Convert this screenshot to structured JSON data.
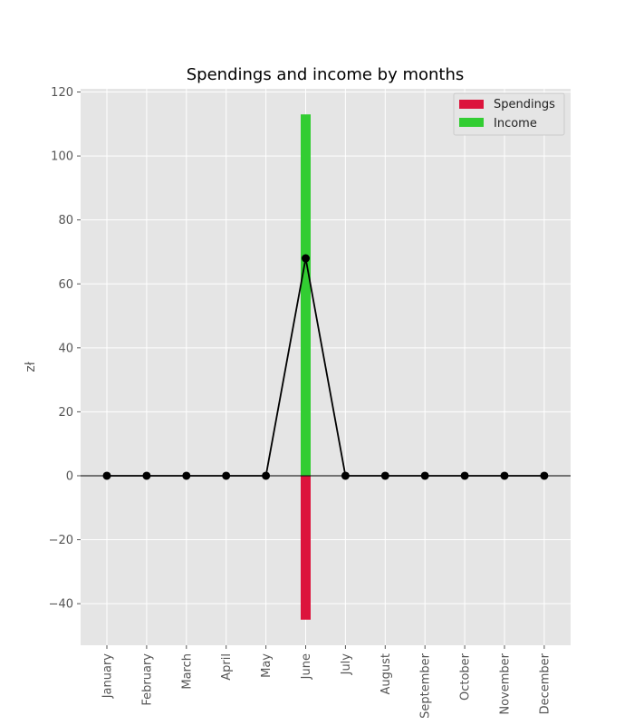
{
  "chart_data": {
    "type": "bar",
    "title": "Spendings and income by months",
    "xlabel": "",
    "ylabel": "zł",
    "categories": [
      "January",
      "February",
      "March",
      "April",
      "May",
      "June",
      "July",
      "August",
      "September",
      "October",
      "November",
      "December"
    ],
    "series": [
      {
        "name": "Spendings",
        "type": "bar",
        "color": "#dc143c",
        "values": [
          0,
          0,
          0,
          0,
          0,
          -45,
          0,
          0,
          0,
          0,
          0,
          0
        ]
      },
      {
        "name": "Income",
        "type": "bar",
        "color": "#32cd32",
        "values": [
          0,
          0,
          0,
          0,
          0,
          113,
          0,
          0,
          0,
          0,
          0,
          0
        ]
      },
      {
        "type": "line",
        "color": "#000000",
        "values": [
          0,
          0,
          0,
          0,
          0,
          68,
          0,
          0,
          0,
          0,
          0,
          0
        ]
      }
    ],
    "ylim": [
      -53,
      121
    ],
    "yticks": [
      -40,
      -20,
      0,
      20,
      40,
      60,
      80,
      100,
      120
    ],
    "grid": true,
    "background": "#e5e5e5",
    "legend": "top-right",
    "zero_line": true
  }
}
